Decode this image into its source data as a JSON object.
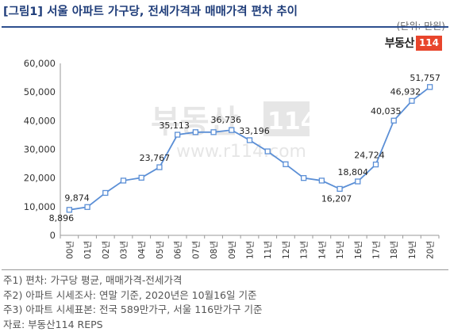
{
  "header": {
    "title": "[그림1] 서울 아파트 가구당, 전세가격과 매매가격 편차 추이",
    "unit": "(단위: 만원)"
  },
  "brand": {
    "logo_text": "부동산",
    "logo_box": "114",
    "watermark_text": "부동산",
    "watermark_box": "114",
    "watermark_url": "www.r114.com",
    "logo_color": "#e8452c"
  },
  "chart_data": {
    "type": "line",
    "title": "",
    "xlabel": "",
    "ylabel": "",
    "ylim": [
      0,
      60000
    ],
    "yticks": [
      0,
      10000,
      20000,
      30000,
      40000,
      50000,
      60000
    ],
    "ytick_labels": [
      "0",
      "10,000",
      "20,000",
      "30,000",
      "40,000",
      "50,000",
      "60,000"
    ],
    "grid": "none",
    "categories": [
      "00년",
      "01년",
      "02년",
      "03년",
      "04년",
      "05년",
      "06년",
      "07년",
      "08년",
      "09년",
      "10년",
      "11년",
      "12년",
      "13년",
      "14년",
      "15년",
      "16년",
      "17년",
      "18년",
      "19년",
      "20년"
    ],
    "series": [
      {
        "values": [
          8896,
          9874,
          14800,
          19100,
          20100,
          23767,
          35113,
          36000,
          36000,
          36736,
          33196,
          29300,
          24800,
          20000,
          19100,
          16207,
          18804,
          24724,
          40035,
          46932,
          51757
        ],
        "color": "#5b8fd6"
      }
    ],
    "data_labels": [
      {
        "index": 0,
        "text": "8,896"
      },
      {
        "index": 1,
        "text": "9,874"
      },
      {
        "index": 5,
        "text": "23,767"
      },
      {
        "index": 6,
        "text": "35,113"
      },
      {
        "index": 9,
        "text": "36,736"
      },
      {
        "index": 10,
        "text": "33,196"
      },
      {
        "index": 15,
        "text": "16,207"
      },
      {
        "index": 16,
        "text": "18,804"
      },
      {
        "index": 17,
        "text": "24,724"
      },
      {
        "index": 18,
        "text": "40,035"
      },
      {
        "index": 19,
        "text": "46,932"
      },
      {
        "index": 20,
        "text": "51,757"
      }
    ]
  },
  "notes": [
    "주1) 편차: 가구당 평균, 매매가격-전세가격",
    "주2) 아파트 시세조사: 연말 기준, 2020년은 10월16일 기준",
    "주3) 아파트 시세표본: 전국 589만가구, 서울 116만가구 기준",
    "자료: 부동산114 REPS"
  ]
}
